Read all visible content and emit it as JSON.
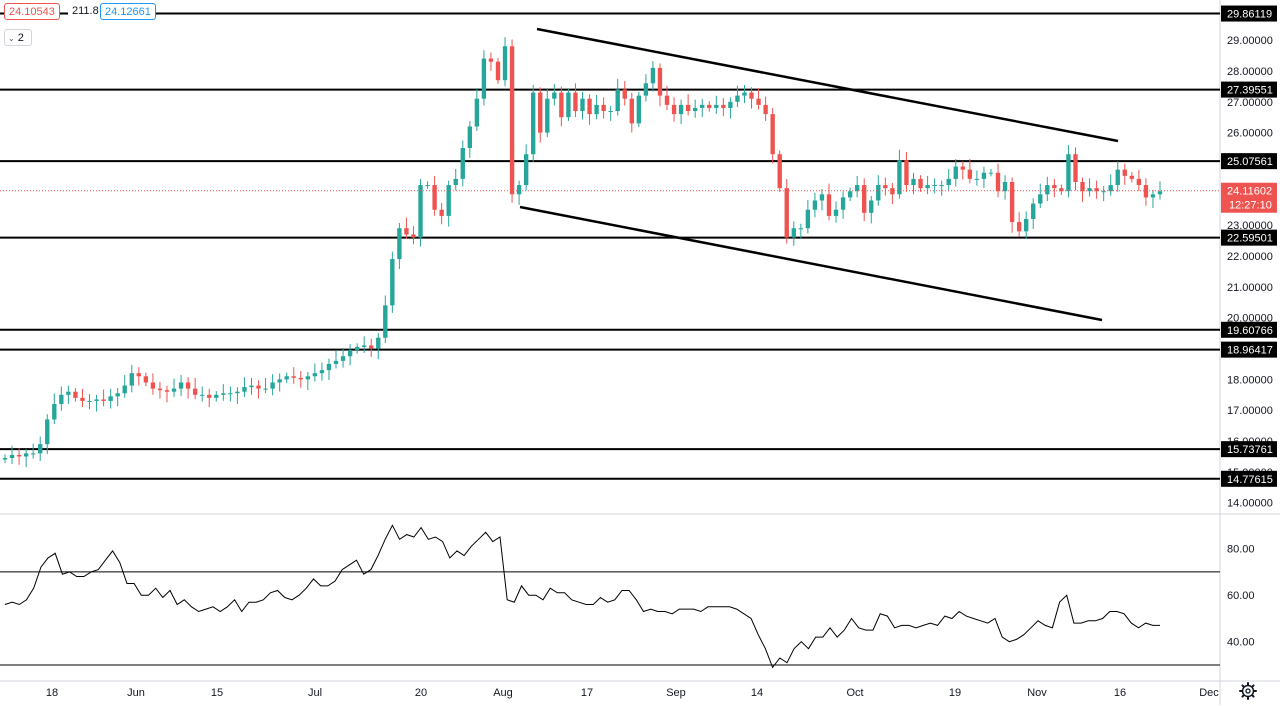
{
  "header": {
    "bid_price": "24.10543",
    "spread": "211.8",
    "ask_price": "24.12661",
    "legend_count": "2"
  },
  "colors": {
    "up": "#26a69a",
    "down": "#ef5350",
    "line": "#000000",
    "axis_text": "#131722",
    "current_price_bg": "#ef5350"
  },
  "chart_data": [
    {
      "type": "candlestick",
      "y_axis_ticks": [
        "14.00000",
        "15.00000",
        "16.00000",
        "17.00000",
        "18.00000",
        "19.00000",
        "20.00000",
        "21.00000",
        "22.00000",
        "23.00000",
        "24.00000",
        "25.00000",
        "26.00000",
        "27.00000",
        "28.00000",
        "29.00000"
      ],
      "ylim": [
        13.7,
        30.3
      ],
      "x_tick_labels": [
        "18",
        "Jun",
        "15",
        "Jul",
        "20",
        "Aug",
        "17",
        "Sep",
        "14",
        "Oct",
        "19",
        "Nov",
        "16",
        "Dec"
      ],
      "close": [
        15.45,
        15.55,
        15.5,
        15.6,
        15.6,
        15.9,
        16.7,
        17.2,
        17.5,
        17.6,
        17.4,
        17.3,
        17.3,
        17.35,
        17.3,
        17.45,
        17.55,
        17.8,
        18.2,
        18.1,
        17.9,
        17.7,
        17.65,
        17.6,
        17.7,
        17.9,
        17.7,
        17.5,
        17.5,
        17.4,
        17.5,
        17.55,
        17.55,
        17.6,
        17.75,
        17.8,
        17.7,
        17.7,
        17.9,
        18.0,
        18.1,
        18.05,
        18.0,
        18.1,
        18.2,
        18.3,
        18.5,
        18.6,
        18.75,
        18.95,
        19.05,
        19.1,
        19.0,
        19.35,
        20.4,
        21.9,
        22.9,
        22.7,
        22.6,
        24.3,
        24.3,
        23.5,
        23.3,
        24.3,
        24.5,
        25.5,
        26.2,
        27.1,
        28.4,
        28.3,
        27.7,
        28.8,
        24.0,
        24.3,
        25.3,
        27.3,
        26.0,
        27.1,
        27.3,
        26.5,
        27.3,
        26.7,
        27.1,
        26.6,
        26.9,
        26.7,
        26.7,
        27.4,
        27.1,
        26.3,
        27.2,
        27.6,
        28.1,
        27.2,
        26.9,
        26.6,
        26.9,
        26.7,
        26.8,
        26.9,
        26.8,
        26.9,
        26.8,
        27.0,
        27.2,
        27.3,
        27.1,
        26.9,
        26.6,
        25.3,
        24.2,
        22.6,
        22.9,
        22.9,
        23.5,
        23.8,
        24.0,
        23.3,
        23.5,
        23.9,
        24.1,
        24.3,
        23.4,
        23.8,
        24.3,
        24.2,
        24.0,
        25.1,
        24.3,
        24.5,
        24.2,
        24.3,
        24.3,
        24.3,
        24.5,
        24.9,
        24.8,
        24.5,
        24.5,
        24.7,
        24.7,
        24.1,
        24.4,
        23.1,
        22.8,
        23.2,
        23.7,
        24.0,
        24.3,
        24.2,
        24.1,
        25.3,
        24.4,
        24.1,
        24.2,
        24.1,
        24.1,
        24.3,
        24.8,
        24.6,
        24.5,
        24.3,
        23.9,
        24.0,
        24.1
      ]
    },
    {
      "type": "line",
      "name": "oscillator",
      "y_axis_ticks": [
        "40.00",
        "60.00",
        "80.00"
      ],
      "ylim": [
        24,
        94
      ],
      "levels": [
        70,
        30
      ],
      "values": [
        56,
        57,
        56,
        58,
        63,
        72,
        76,
        78,
        69,
        70,
        68,
        68,
        70,
        71,
        75,
        79,
        74,
        65,
        65,
        60,
        60,
        63,
        59,
        62,
        56,
        58,
        55,
        53,
        54,
        55,
        53,
        55,
        58,
        53,
        57,
        57,
        58,
        61,
        62,
        59,
        58,
        60,
        63,
        67,
        64,
        64,
        66,
        71,
        73,
        75,
        69,
        71,
        77,
        84,
        90,
        84,
        86,
        85,
        89,
        84,
        85,
        83,
        76,
        79,
        77,
        81,
        84,
        87,
        83,
        85,
        58,
        57,
        64,
        60,
        60,
        58,
        63,
        61,
        61,
        58,
        57,
        56,
        56,
        59,
        57,
        58,
        62,
        62,
        58,
        53,
        54,
        53,
        53,
        52,
        54,
        54,
        54,
        53,
        55,
        55,
        55,
        55,
        54,
        52,
        50,
        43,
        37,
        29,
        33,
        31,
        37,
        40,
        37,
        42,
        42,
        46,
        42,
        45,
        50,
        46,
        45,
        45,
        52,
        51,
        46,
        47,
        47,
        46,
        47,
        48,
        47,
        51,
        50,
        53,
        51,
        50,
        49,
        48,
        50,
        42,
        40,
        41,
        43,
        46,
        49,
        47,
        46,
        57,
        60,
        48,
        48,
        49,
        49,
        50,
        53,
        53,
        52,
        48,
        46,
        48,
        47,
        47
      ]
    }
  ],
  "horizontal_levels": [
    "29.86119",
    "27.39551",
    "25.07561",
    "22.59501",
    "19.60766",
    "18.96417",
    "15.73761",
    "14.77615"
  ],
  "current_price": "24.11602",
  "countdown": "12:27:10"
}
